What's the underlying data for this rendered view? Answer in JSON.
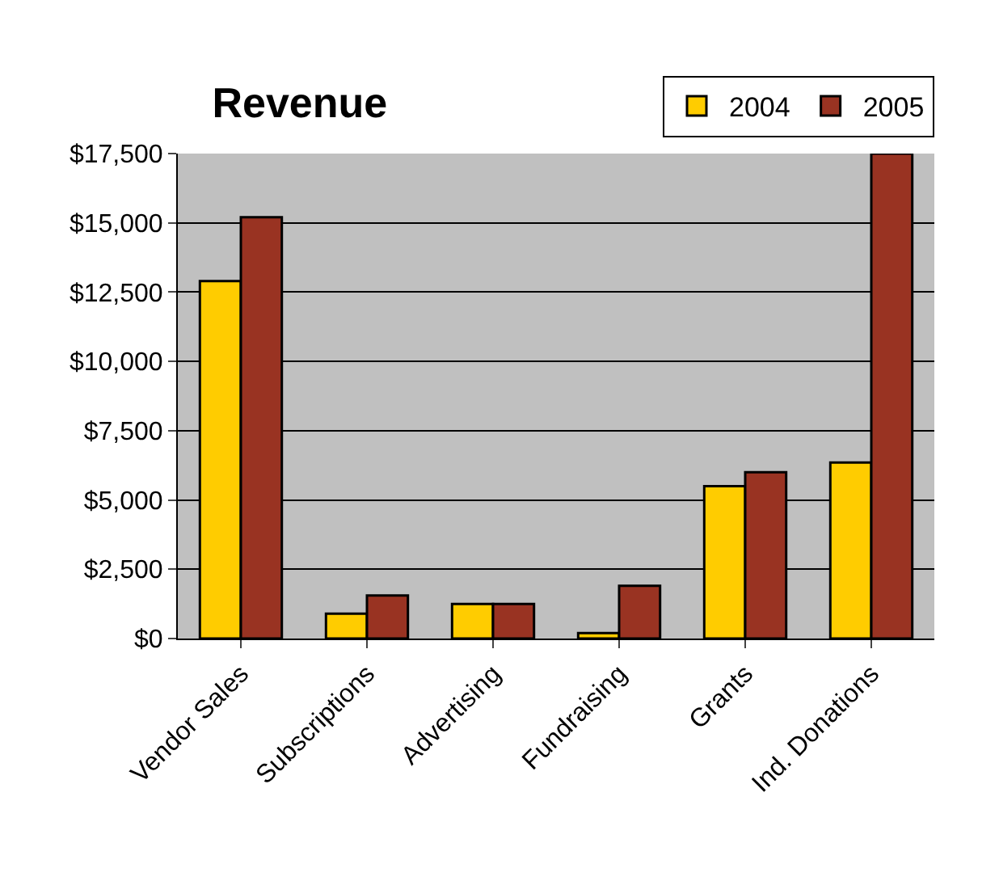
{
  "chart_data": {
    "type": "bar",
    "title": "Revenue",
    "categories": [
      "Vendor Sales",
      "Subscriptions",
      "Advertising",
      "Fundraising",
      "Grants",
      "Ind. Donations"
    ],
    "series": [
      {
        "name": "2004",
        "color": "#ffcc00",
        "values": [
          12900,
          900,
          1250,
          200,
          5500,
          6350
        ]
      },
      {
        "name": "2005",
        "color": "#993322",
        "values": [
          15200,
          1550,
          1250,
          1900,
          6000,
          17500
        ]
      }
    ],
    "ylim": [
      0,
      17500
    ],
    "yticks": [
      {
        "value": 0,
        "label": "$0"
      },
      {
        "value": 2500,
        "label": "$2,500"
      },
      {
        "value": 5000,
        "label": "$5,000"
      },
      {
        "value": 7500,
        "label": "$7,500"
      },
      {
        "value": 10000,
        "label": "$10,000"
      },
      {
        "value": 12500,
        "label": "$12,500"
      },
      {
        "value": 15000,
        "label": "$15,000"
      },
      {
        "value": 17500,
        "label": "$17,500"
      }
    ],
    "grid": "y",
    "legend": "top right"
  }
}
